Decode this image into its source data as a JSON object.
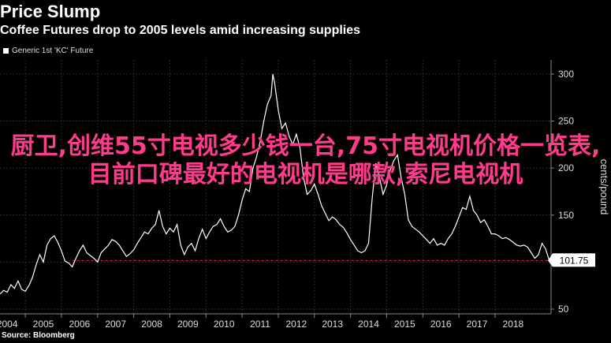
{
  "chart_data": {
    "type": "line",
    "title": "Price Slump",
    "subtitle": "Coffee Futures drop to 2005 levels amid increasing supplies",
    "source": "Source: Bloomberg",
    "ylabel": "cents/pound",
    "ylim": [
      45,
      315
    ],
    "xlim": [
      2003.8,
      2019.05
    ],
    "x_ticks": [
      "2004",
      "2005",
      "2006",
      "2007",
      "2008",
      "2009",
      "2010",
      "2011",
      "2012",
      "2013",
      "2014",
      "2015",
      "2016",
      "2017",
      "2018"
    ],
    "y_ticks": [
      "50",
      "100",
      "150",
      "200",
      "250",
      "300"
    ],
    "series": [
      {
        "name": "Generic 1st 'KC' Future",
        "color": "#ffffff",
        "last_value_label": "101.75",
        "points": [
          [
            2003.8,
            66
          ],
          [
            2003.9,
            70
          ],
          [
            2004.0,
            68
          ],
          [
            2004.1,
            76
          ],
          [
            2004.2,
            72
          ],
          [
            2004.3,
            80
          ],
          [
            2004.4,
            71
          ],
          [
            2004.5,
            69
          ],
          [
            2004.6,
            75
          ],
          [
            2004.7,
            84
          ],
          [
            2004.8,
            97
          ],
          [
            2004.9,
            108
          ],
          [
            2005.0,
            100
          ],
          [
            2005.1,
            118
          ],
          [
            2005.2,
            125
          ],
          [
            2005.3,
            128
          ],
          [
            2005.4,
            121
          ],
          [
            2005.5,
            112
          ],
          [
            2005.6,
            101
          ],
          [
            2005.7,
            99
          ],
          [
            2005.8,
            95
          ],
          [
            2005.9,
            104
          ],
          [
            2006.0,
            112
          ],
          [
            2006.1,
            118
          ],
          [
            2006.2,
            110
          ],
          [
            2006.3,
            107
          ],
          [
            2006.4,
            104
          ],
          [
            2006.5,
            100
          ],
          [
            2006.6,
            110
          ],
          [
            2006.7,
            114
          ],
          [
            2006.8,
            118
          ],
          [
            2006.9,
            124
          ],
          [
            2007.0,
            122
          ],
          [
            2007.1,
            118
          ],
          [
            2007.2,
            112
          ],
          [
            2007.3,
            106
          ],
          [
            2007.4,
            109
          ],
          [
            2007.5,
            113
          ],
          [
            2007.6,
            120
          ],
          [
            2007.7,
            126
          ],
          [
            2007.8,
            132
          ],
          [
            2007.9,
            130
          ],
          [
            2008.0,
            136
          ],
          [
            2008.1,
            140
          ],
          [
            2008.2,
            155
          ],
          [
            2008.3,
            138
          ],
          [
            2008.4,
            130
          ],
          [
            2008.5,
            136
          ],
          [
            2008.6,
            132
          ],
          [
            2008.7,
            140
          ],
          [
            2008.8,
            118
          ],
          [
            2008.9,
            108
          ],
          [
            2009.0,
            116
          ],
          [
            2009.1,
            120
          ],
          [
            2009.2,
            112
          ],
          [
            2009.3,
            125
          ],
          [
            2009.4,
            135
          ],
          [
            2009.5,
            125
          ],
          [
            2009.6,
            132
          ],
          [
            2009.7,
            138
          ],
          [
            2009.8,
            140
          ],
          [
            2009.9,
            146
          ],
          [
            2010.0,
            138
          ],
          [
            2010.1,
            132
          ],
          [
            2010.2,
            134
          ],
          [
            2010.3,
            138
          ],
          [
            2010.4,
            150
          ],
          [
            2010.5,
            166
          ],
          [
            2010.6,
            178
          ],
          [
            2010.7,
            175
          ],
          [
            2010.8,
            200
          ],
          [
            2010.9,
            212
          ],
          [
            2011.0,
            228
          ],
          [
            2011.1,
            250
          ],
          [
            2011.2,
            268
          ],
          [
            2011.3,
            277
          ],
          [
            2011.35,
            300
          ],
          [
            2011.4,
            290
          ],
          [
            2011.5,
            262
          ],
          [
            2011.6,
            242
          ],
          [
            2011.7,
            248
          ],
          [
            2011.8,
            234
          ],
          [
            2011.9,
            225
          ],
          [
            2012.0,
            236
          ],
          [
            2012.1,
            222
          ],
          [
            2012.2,
            190
          ],
          [
            2012.3,
            172
          ],
          [
            2012.4,
            176
          ],
          [
            2012.5,
            183
          ],
          [
            2012.6,
            172
          ],
          [
            2012.7,
            160
          ],
          [
            2012.8,
            152
          ],
          [
            2012.9,
            144
          ],
          [
            2013.0,
            148
          ],
          [
            2013.1,
            145
          ],
          [
            2013.2,
            140
          ],
          [
            2013.3,
            137
          ],
          [
            2013.4,
            131
          ],
          [
            2013.5,
            124
          ],
          [
            2013.6,
            118
          ],
          [
            2013.7,
            112
          ],
          [
            2013.8,
            110
          ],
          [
            2013.9,
            112
          ],
          [
            2014.0,
            120
          ],
          [
            2014.1,
            168
          ],
          [
            2014.2,
            205
          ],
          [
            2014.3,
            190
          ],
          [
            2014.4,
            172
          ],
          [
            2014.5,
            182
          ],
          [
            2014.6,
            198
          ],
          [
            2014.7,
            208
          ],
          [
            2014.8,
            214
          ],
          [
            2014.9,
            190
          ],
          [
            2015.0,
            172
          ],
          [
            2015.1,
            145
          ],
          [
            2015.2,
            138
          ],
          [
            2015.3,
            135
          ],
          [
            2015.4,
            132
          ],
          [
            2015.5,
            128
          ],
          [
            2015.6,
            124
          ],
          [
            2015.7,
            120
          ],
          [
            2015.8,
            125
          ],
          [
            2015.9,
            118
          ],
          [
            2016.0,
            120
          ],
          [
            2016.1,
            118
          ],
          [
            2016.2,
            125
          ],
          [
            2016.3,
            130
          ],
          [
            2016.4,
            138
          ],
          [
            2016.5,
            148
          ],
          [
            2016.6,
            158
          ],
          [
            2016.7,
            156
          ],
          [
            2016.8,
            170
          ],
          [
            2016.9,
            155
          ],
          [
            2017.0,
            150
          ],
          [
            2017.1,
            142
          ],
          [
            2017.2,
            145
          ],
          [
            2017.3,
            138
          ],
          [
            2017.4,
            130
          ],
          [
            2017.5,
            130
          ],
          [
            2017.6,
            128
          ],
          [
            2017.7,
            125
          ],
          [
            2017.8,
            126
          ],
          [
            2017.9,
            124
          ],
          [
            2018.0,
            121
          ],
          [
            2018.1,
            118
          ],
          [
            2018.2,
            117
          ],
          [
            2018.3,
            118
          ],
          [
            2018.4,
            116
          ],
          [
            2018.5,
            110
          ],
          [
            2018.6,
            104
          ],
          [
            2018.7,
            108
          ],
          [
            2018.8,
            120
          ],
          [
            2018.9,
            114
          ],
          [
            2019.0,
            101.75
          ]
        ]
      }
    ],
    "reference_line": {
      "value": 101.75,
      "color": "#e0245e",
      "style": "dashed"
    },
    "grid": true,
    "legend": "top-left"
  },
  "overlay_text": "厨卫,创维55寸电视多少钱一台,75寸电视机价格一览表,目前口碑最好的电视机是哪款,索尼电视机",
  "colors": {
    "background": "#000000",
    "line": "#ffffff",
    "grid": "#2c2c2c",
    "overlay": "#ff3b8c",
    "reference": "#e0245e"
  }
}
